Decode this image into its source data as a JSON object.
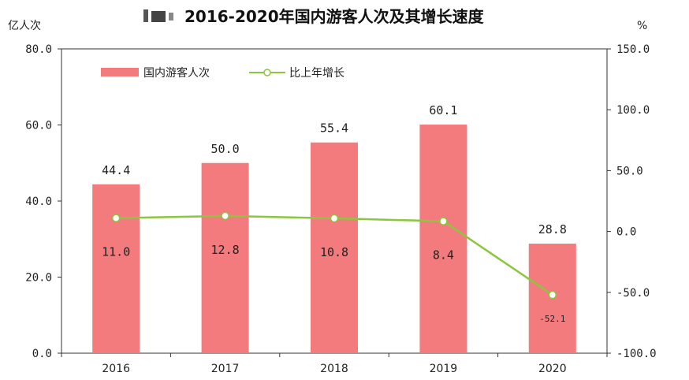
{
  "chart_data": {
    "type": "bar",
    "title": "2016-2020年国内游客人次及其增长速度",
    "left_unit": "亿人次",
    "right_unit": "%",
    "categories": [
      "2016",
      "2017",
      "2018",
      "2019",
      "2020"
    ],
    "left_axis": {
      "ylim": [
        0,
        80
      ],
      "ticks": [
        "0.0",
        "20.0",
        "40.0",
        "60.0",
        "80.0"
      ]
    },
    "right_axis": {
      "ylim": [
        -100,
        150
      ],
      "ticks": [
        "-100.0",
        "-50.0",
        "0.0",
        "50.0",
        "100.0",
        "150.0"
      ]
    },
    "series": [
      {
        "name": "国内游客人次",
        "type": "bar",
        "axis": "left",
        "color": "#f37b7e",
        "values": [
          44.4,
          50.0,
          55.4,
          60.1,
          28.8
        ],
        "labels": [
          "44.4",
          "50.0",
          "55.4",
          "60.1",
          "28.8"
        ]
      },
      {
        "name": "比上年增长",
        "type": "line",
        "axis": "right",
        "color": "#8cc63f",
        "values": [
          11.0,
          12.8,
          10.8,
          8.4,
          -52.1
        ],
        "labels": [
          "11.0",
          "12.8",
          "10.8",
          "8.4",
          "-52.1"
        ]
      }
    ],
    "legend": "top-left",
    "grid": false
  }
}
